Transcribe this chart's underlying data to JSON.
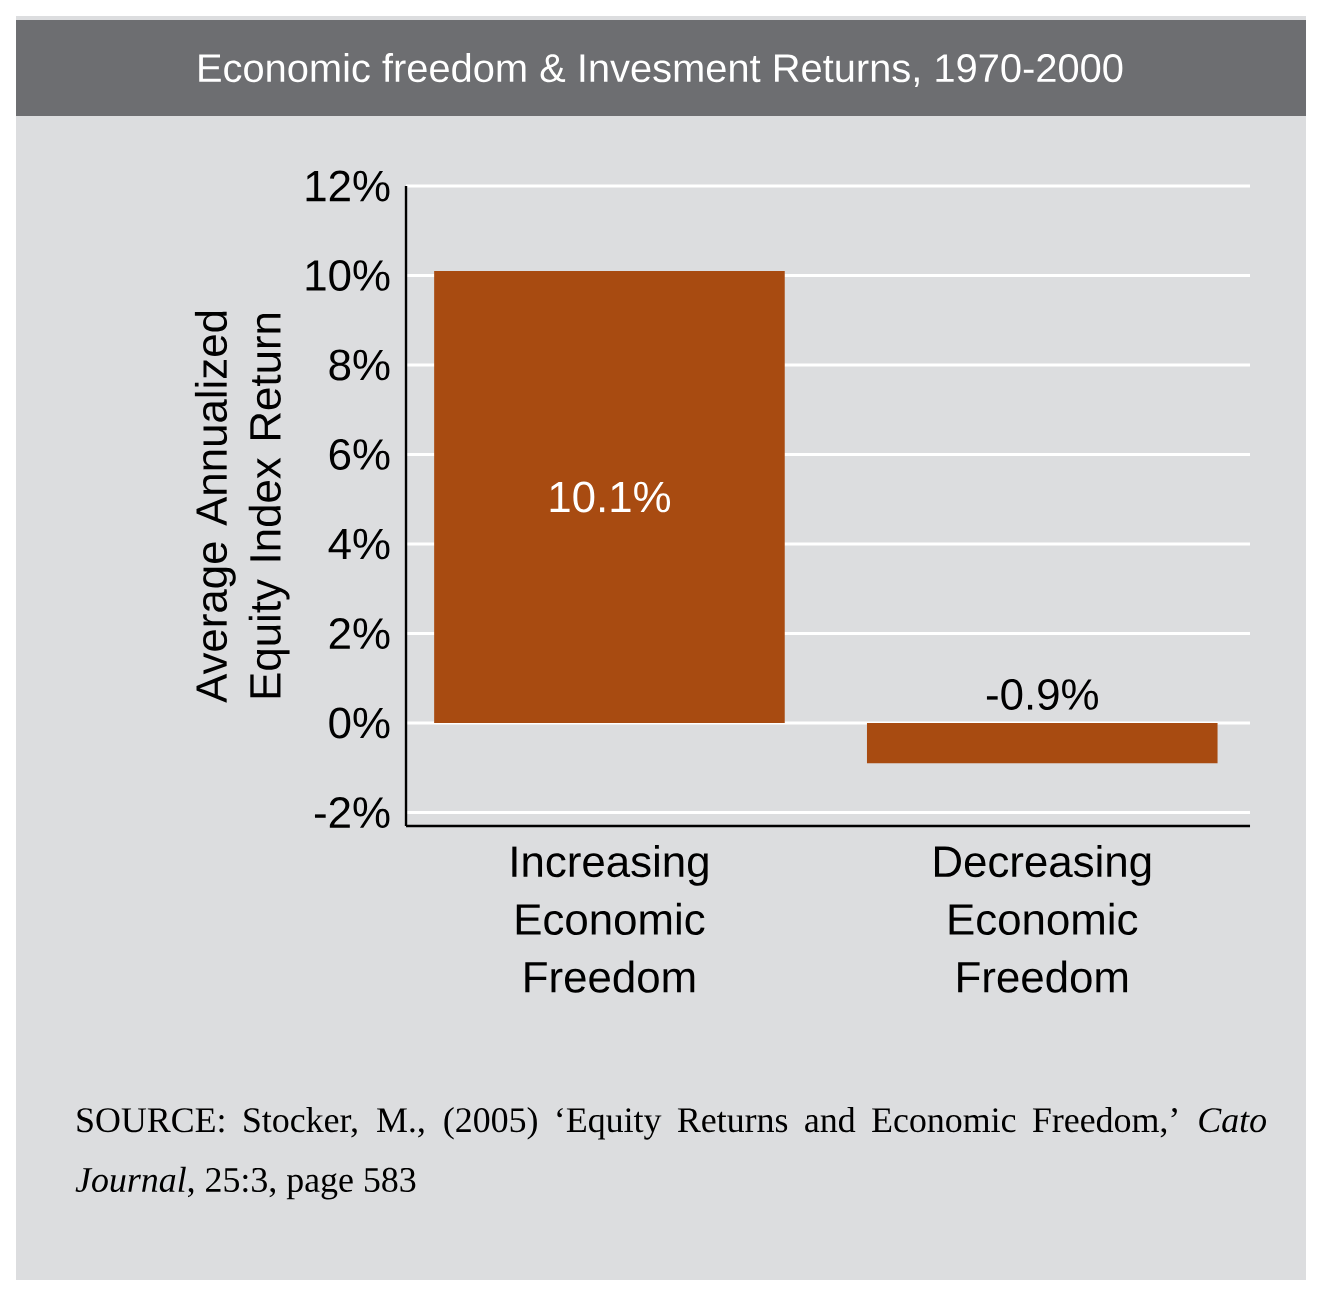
{
  "chart_data": {
    "type": "bar",
    "title": "Economic freedom & Invesment Returns, 1970-2000",
    "ylabel": "Average Annualized Equity Index Return",
    "categories": [
      "Increasing Economic Freedom",
      "Decreasing Economic Freedom"
    ],
    "values": [
      10.1,
      -0.9
    ],
    "color": "#a84b11",
    "value_labels": [
      "10.1%",
      "-0.9%"
    ],
    "ylim": [
      -2.3,
      12
    ],
    "yticks": [
      {
        "value": -2,
        "label": "-2%"
      },
      {
        "value": 0,
        "label": "0%"
      },
      {
        "value": 2,
        "label": "2%"
      },
      {
        "value": 4,
        "label": "4%"
      },
      {
        "value": 6,
        "label": "6%"
      },
      {
        "value": 8,
        "label": "8%"
      },
      {
        "value": 10,
        "label": "10%"
      },
      {
        "value": 12,
        "label": "12%"
      }
    ],
    "grid": "y",
    "annotations": [
      "SOURCE: Stocker, M., (2005) ‘Equity Returns and Economic Freedom,’ *Cato Journal*, 25:3, page 583"
    ]
  }
}
